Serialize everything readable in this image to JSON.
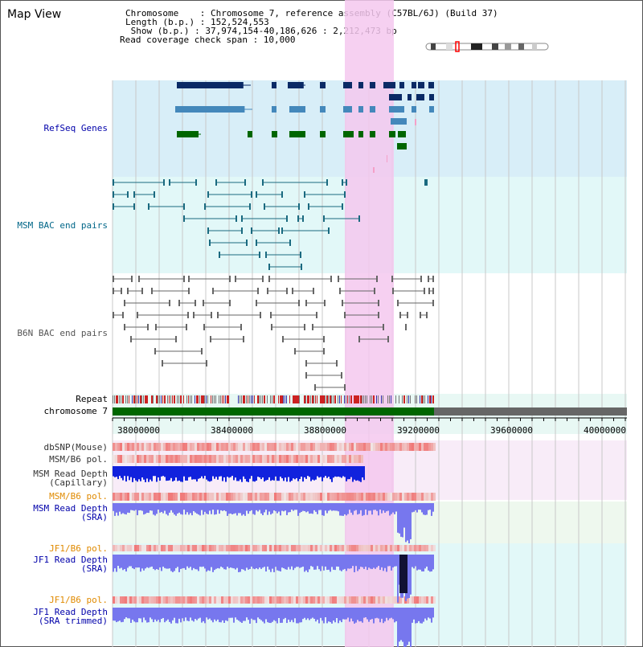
{
  "title": "Map View",
  "info": {
    "chromosome": "Chromosome    : Chromosome 7, reference assembly (C57BL/6J) (Build 37)",
    "length": "Length (b.p.) : 152,524,553",
    "show": " Show (b.p.) : 37,974,154-40,186,626 : 2,212,473 bp",
    "span": "Read coverage check span : 10,000"
  },
  "tracks": {
    "refseq": "RefSeq Genes",
    "msm_bac": "MSM BAC end pairs",
    "b6n_bac": "B6N BAC end pairs",
    "repeat": "Repeat",
    "chromosome": "chromosome 7",
    "dbsnp": "dbSNP(Mouse)",
    "msm_b6_pol_1": "MSM/B6 pol.",
    "msm_depth_cap": "MSM Read Depth\n(Capillary)",
    "msm_b6_pol_2": "MSM/B6 pol.",
    "msm_depth_sra": "MSM Read Depth\n(SRA)",
    "jf1_b6_pol_1": "JF1/B6 pol.",
    "jf1_depth_sra": "JF1 Read Depth\n(SRA)",
    "jf1_b6_pol_2": "JF1/B6 pol.",
    "jf1_depth_trim": "JF1 Read Depth\n(SRA trimmed)"
  },
  "axis": {
    "ticks": [
      "38000000",
      "38400000",
      "38800000",
      "39200000",
      "39600000",
      "40000000"
    ]
  },
  "colors": {
    "refseq_label": "#0000aa",
    "msm_label": "#006688",
    "b6n_label": "#555555",
    "pol_label": "#e08a00",
    "depth_label": "#0000aa",
    "highlight": "#f5c8ee",
    "chromosome_bar": "#006600"
  }
}
